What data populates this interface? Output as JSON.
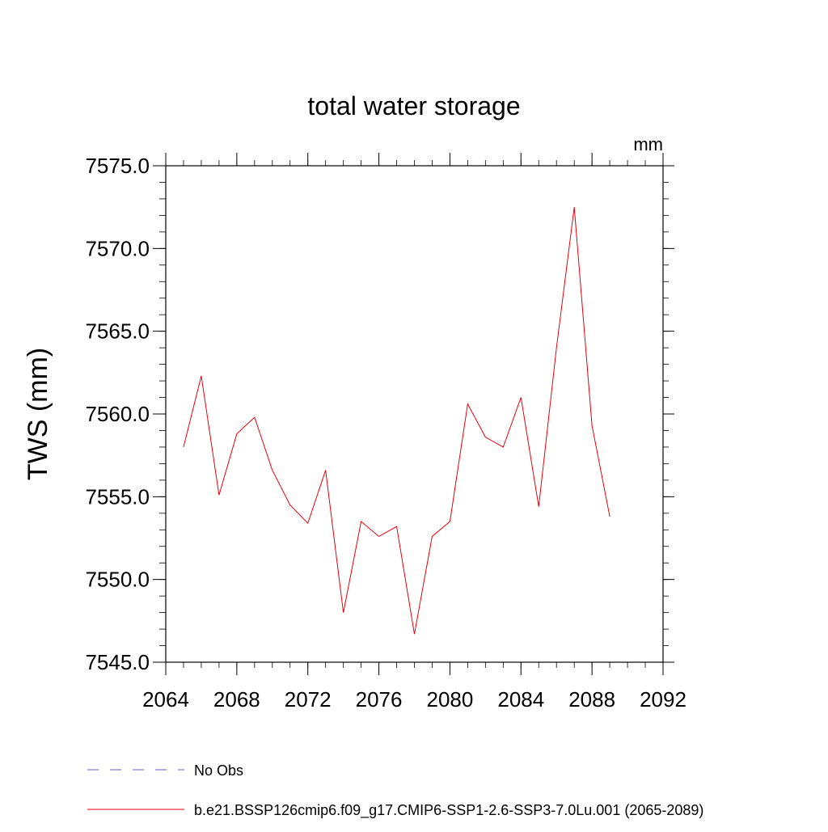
{
  "chart_data": {
    "type": "line",
    "title": "total water storage",
    "units_label": "mm",
    "xlabel": "",
    "ylabel": "TWS  (mm)",
    "xlim": [
      2064,
      2092
    ],
    "ylim": [
      7545.0,
      7575.0
    ],
    "x_ticks": [
      2064,
      2068,
      2072,
      2076,
      2080,
      2084,
      2088,
      2092
    ],
    "y_ticks": [
      "7545.0",
      "7550.0",
      "7555.0",
      "7560.0",
      "7565.0",
      "7570.0",
      "7575.0"
    ],
    "grid": false,
    "legend_position": "bottom",
    "legend": [
      {
        "label": "No Obs",
        "style": "dashed",
        "color": "#6a5acd"
      },
      {
        "label": "b.e21.BSSP126cmip6.f09_g17.CMIP6-SSP1-2.6-SSP3-7.0Lu.001 (2065-2089)",
        "style": "solid",
        "color": "#e8000b"
      }
    ],
    "series": [
      {
        "name": "b.e21.BSSP126cmip6.f09_g17.CMIP6-SSP1-2.6-SSP3-7.0Lu.001 (2065-2089)",
        "color": "#e8000b",
        "x": [
          2065,
          2066,
          2067,
          2068,
          2069,
          2070,
          2071,
          2072,
          2073,
          2074,
          2075,
          2076,
          2077,
          2078,
          2079,
          2080,
          2081,
          2082,
          2083,
          2084,
          2085,
          2086,
          2087,
          2088,
          2089
        ],
        "y": [
          7558.0,
          7562.3,
          7555.1,
          7558.8,
          7559.8,
          7556.6,
          7554.5,
          7553.4,
          7556.6,
          7548.0,
          7553.5,
          7552.6,
          7553.2,
          7546.7,
          7552.6,
          7553.5,
          7560.6,
          7558.6,
          7558.0,
          7561.0,
          7554.4,
          7564.0,
          7572.5,
          7559.3,
          7553.8
        ]
      }
    ]
  }
}
